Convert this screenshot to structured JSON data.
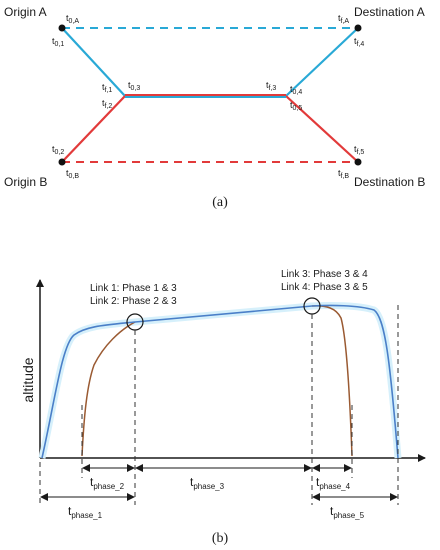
{
  "panel_a": {
    "origin_a": "Origin A",
    "origin_b": "Origin B",
    "destination_a": "Destination A",
    "destination_b": "Destination B",
    "times": {
      "t0A": {
        "base": "t",
        "sub": "0,A"
      },
      "t01": {
        "base": "t",
        "sub": "0,1"
      },
      "tfA": {
        "base": "t",
        "sub": "f,A"
      },
      "tf4": {
        "base": "t",
        "sub": "f,4"
      },
      "tf1": {
        "base": "t",
        "sub": "f,1"
      },
      "t03": {
        "base": "t",
        "sub": "0,3"
      },
      "tf2": {
        "base": "t",
        "sub": "f,2"
      },
      "tf3": {
        "base": "t",
        "sub": "f,3"
      },
      "t04": {
        "base": "t",
        "sub": "0,4"
      },
      "t05": {
        "base": "t",
        "sub": "0,5"
      },
      "t02": {
        "base": "t",
        "sub": "0,2"
      },
      "t0B": {
        "base": "t",
        "sub": "0,B"
      },
      "tf5": {
        "base": "t",
        "sub": "f,5"
      },
      "tfB": {
        "base": "t",
        "sub": "f,B"
      }
    },
    "caption": "(a)",
    "colors": {
      "route_a": "#29a9d6",
      "route_b": "#e23a3a",
      "node": "#111111"
    }
  },
  "panel_b": {
    "ylabel": "altitude",
    "link12_line1": "Link 1: Phase 1 & 3",
    "link12_line2": "Link 2: Phase 2 & 3",
    "link34_line1": "Link 3: Phase 3 & 4",
    "link34_line2": "Link 4: Phase 3 & 5",
    "phases": {
      "p1": {
        "base": "t",
        "sub": "phase_1"
      },
      "p2": {
        "base": "t",
        "sub": "phase_2"
      },
      "p3": {
        "base": "t",
        "sub": "phase_3"
      },
      "p4": {
        "base": "t",
        "sub": "phase_4"
      },
      "p5": {
        "base": "t",
        "sub": "phase_5"
      }
    },
    "caption": "(b)",
    "colors": {
      "profile_blue": "#4a7fc8",
      "profile_brown": "#9a5a32"
    }
  }
}
